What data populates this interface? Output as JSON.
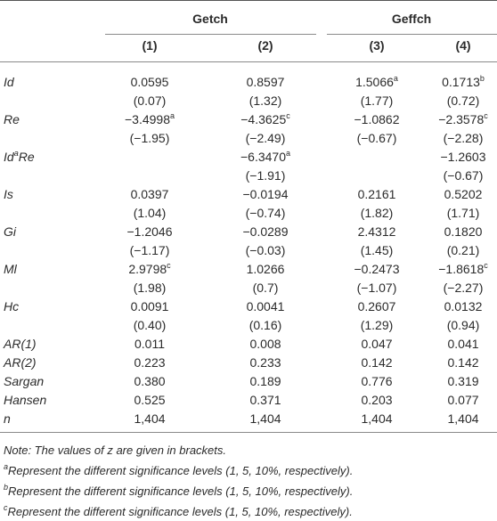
{
  "table": {
    "groups": [
      "Getch",
      "Geffch"
    ],
    "columns": [
      "(1)",
      "(2)",
      "(3)",
      "(4)"
    ],
    "rows": [
      {
        "label": {
          "text": "Id"
        },
        "coef": [
          {
            "text": "0.0595"
          },
          {
            "text": "0.8597"
          },
          {
            "text": "1.5066",
            "sup": "a"
          },
          {
            "text": "0.1713",
            "sup": "b"
          }
        ],
        "z": [
          "(0.07)",
          "(1.32)",
          "(1.77)",
          "(0.72)"
        ]
      },
      {
        "label": {
          "text": "Re"
        },
        "coef": [
          {
            "text": "−3.4998",
            "sup": "a"
          },
          {
            "text": "−4.3625",
            "sup": "c"
          },
          {
            "text": "−1.0862"
          },
          {
            "text": "−2.3578",
            "sup": "c"
          }
        ],
        "z": [
          "(−1.95)",
          "(−2.49)",
          "(−0.67)",
          "(−2.28)"
        ]
      },
      {
        "label": {
          "text": "Id",
          "sup": "a",
          "after": "Re"
        },
        "coef": [
          null,
          {
            "text": "−6.3470",
            "sup": "a"
          },
          null,
          {
            "text": "−1.2603"
          }
        ],
        "z": [
          null,
          "(−1.91)",
          null,
          "(−0.67)"
        ]
      },
      {
        "label": {
          "text": "Is"
        },
        "coef": [
          {
            "text": "0.0397"
          },
          {
            "text": "−0.0194"
          },
          {
            "text": "0.2161"
          },
          {
            "text": "0.5202"
          }
        ],
        "z": [
          "(1.04)",
          "(−0.74)",
          "(1.82)",
          "(1.71)"
        ]
      },
      {
        "label": {
          "text": "Gi"
        },
        "coef": [
          {
            "text": "−1.2046"
          },
          {
            "text": "−0.0289"
          },
          {
            "text": "2.4312"
          },
          {
            "text": "0.1820"
          }
        ],
        "z": [
          "(−1.17)",
          "(−0.03)",
          "(1.45)",
          "(0.21)"
        ]
      },
      {
        "label": {
          "text": "Ml"
        },
        "coef": [
          {
            "text": "2.9798",
            "sup": "c"
          },
          {
            "text": "1.0266"
          },
          {
            "text": "−0.2473"
          },
          {
            "text": "−1.8618",
            "sup": "c"
          }
        ],
        "z": [
          "(1.98)",
          "(0.7)",
          "(−1.07)",
          "(−2.27)"
        ]
      },
      {
        "label": {
          "text": "Hc"
        },
        "coef": [
          {
            "text": "0.0091"
          },
          {
            "text": "0.0041"
          },
          {
            "text": "0.2607"
          },
          {
            "text": "0.0132"
          }
        ],
        "z": [
          "(0.40)",
          "(0.16)",
          "(1.29)",
          "(0.94)"
        ]
      },
      {
        "label": {
          "text": "AR(1)"
        },
        "coef": [
          {
            "text": "0.011"
          },
          {
            "text": "0.008"
          },
          {
            "text": "0.047"
          },
          {
            "text": "0.041"
          }
        ]
      },
      {
        "label": {
          "text": "AR(2)"
        },
        "coef": [
          {
            "text": "0.223"
          },
          {
            "text": "0.233"
          },
          {
            "text": "0.142"
          },
          {
            "text": "0.142"
          }
        ]
      },
      {
        "label": {
          "text": "Sargan"
        },
        "coef": [
          {
            "text": "0.380"
          },
          {
            "text": "0.189"
          },
          {
            "text": "0.776"
          },
          {
            "text": "0.319"
          }
        ]
      },
      {
        "label": {
          "text": "Hansen"
        },
        "coef": [
          {
            "text": "0.525"
          },
          {
            "text": "0.371"
          },
          {
            "text": "0.203"
          },
          {
            "text": "0.077"
          }
        ]
      },
      {
        "label": {
          "text": "n"
        },
        "coef": [
          {
            "text": "1,404"
          },
          {
            "text": "1,404"
          },
          {
            "text": "1,404"
          },
          {
            "text": "1,404"
          }
        ]
      }
    ],
    "note": "Note: The values of z are given in brackets.",
    "footnotes": [
      {
        "sup": "a",
        "text": "Represent the different significance levels (1, 5, 10%, respectively)."
      },
      {
        "sup": "b",
        "text": "Represent the different significance levels (1, 5, 10%, respectively)."
      },
      {
        "sup": "c",
        "text": "Represent the different significance levels (1, 5, 10%, respectively)."
      }
    ]
  }
}
